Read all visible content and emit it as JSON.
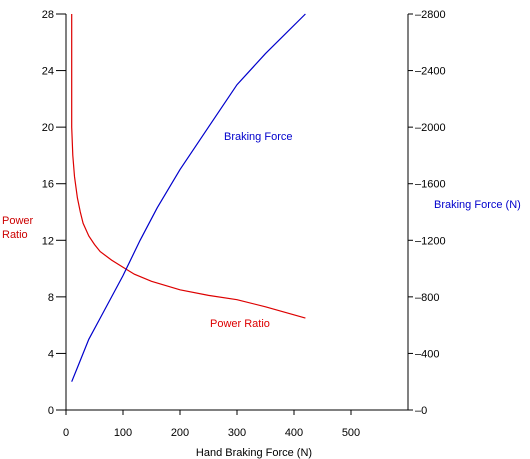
{
  "chart_data": {
    "type": "line",
    "title": "",
    "xlabel": "Hand Braking Force (N)",
    "y_left_label_lines": [
      "Power",
      "Ratio"
    ],
    "y_right_label": "Braking Force (N)",
    "xlim": [
      0,
      600
    ],
    "ylim_left": [
      0,
      28
    ],
    "ylim_right": [
      0,
      2800
    ],
    "x_ticks": [
      0,
      100,
      200,
      300,
      400,
      500
    ],
    "y_left_ticks": [
      0,
      4,
      8,
      12,
      16,
      20,
      24,
      28
    ],
    "y_right_ticks": [
      0,
      400,
      800,
      1200,
      1600,
      2000,
      2400,
      2800
    ],
    "y_right_tick_labels": [
      "–0",
      "–400",
      "–800",
      "–1200",
      "–1600",
      "–2000",
      "–2400",
      "–2800"
    ],
    "grid": false,
    "colors": {
      "left_axis_label": "#cc0000",
      "right_axis_label": "#0000cc"
    },
    "series": [
      {
        "name": "Power Ratio",
        "axis": "left",
        "color": "#dd0000",
        "x": [
          10,
          10,
          10,
          12,
          15,
          20,
          25,
          30,
          40,
          50,
          60,
          80,
          100,
          120,
          150,
          200,
          250,
          300,
          350,
          420
        ],
        "y": [
          28,
          24,
          20,
          18,
          16.5,
          15,
          14,
          13.2,
          12.3,
          11.7,
          11.2,
          10.6,
          10.1,
          9.6,
          9.1,
          8.5,
          8.1,
          7.8,
          7.3,
          6.5
        ]
      },
      {
        "name": "Braking Force",
        "axis": "right",
        "color": "#0000cc",
        "x": [
          10,
          20,
          40,
          60,
          80,
          100,
          130,
          160,
          200,
          250,
          300,
          350,
          420
        ],
        "y": [
          200,
          300,
          500,
          650,
          800,
          950,
          1200,
          1430,
          1700,
          2000,
          2300,
          2520,
          2800
        ]
      }
    ],
    "annotations": [
      {
        "text": "Braking Force",
        "series": "Braking Force"
      },
      {
        "text": "Power Ratio",
        "series": "Power Ratio"
      }
    ]
  }
}
